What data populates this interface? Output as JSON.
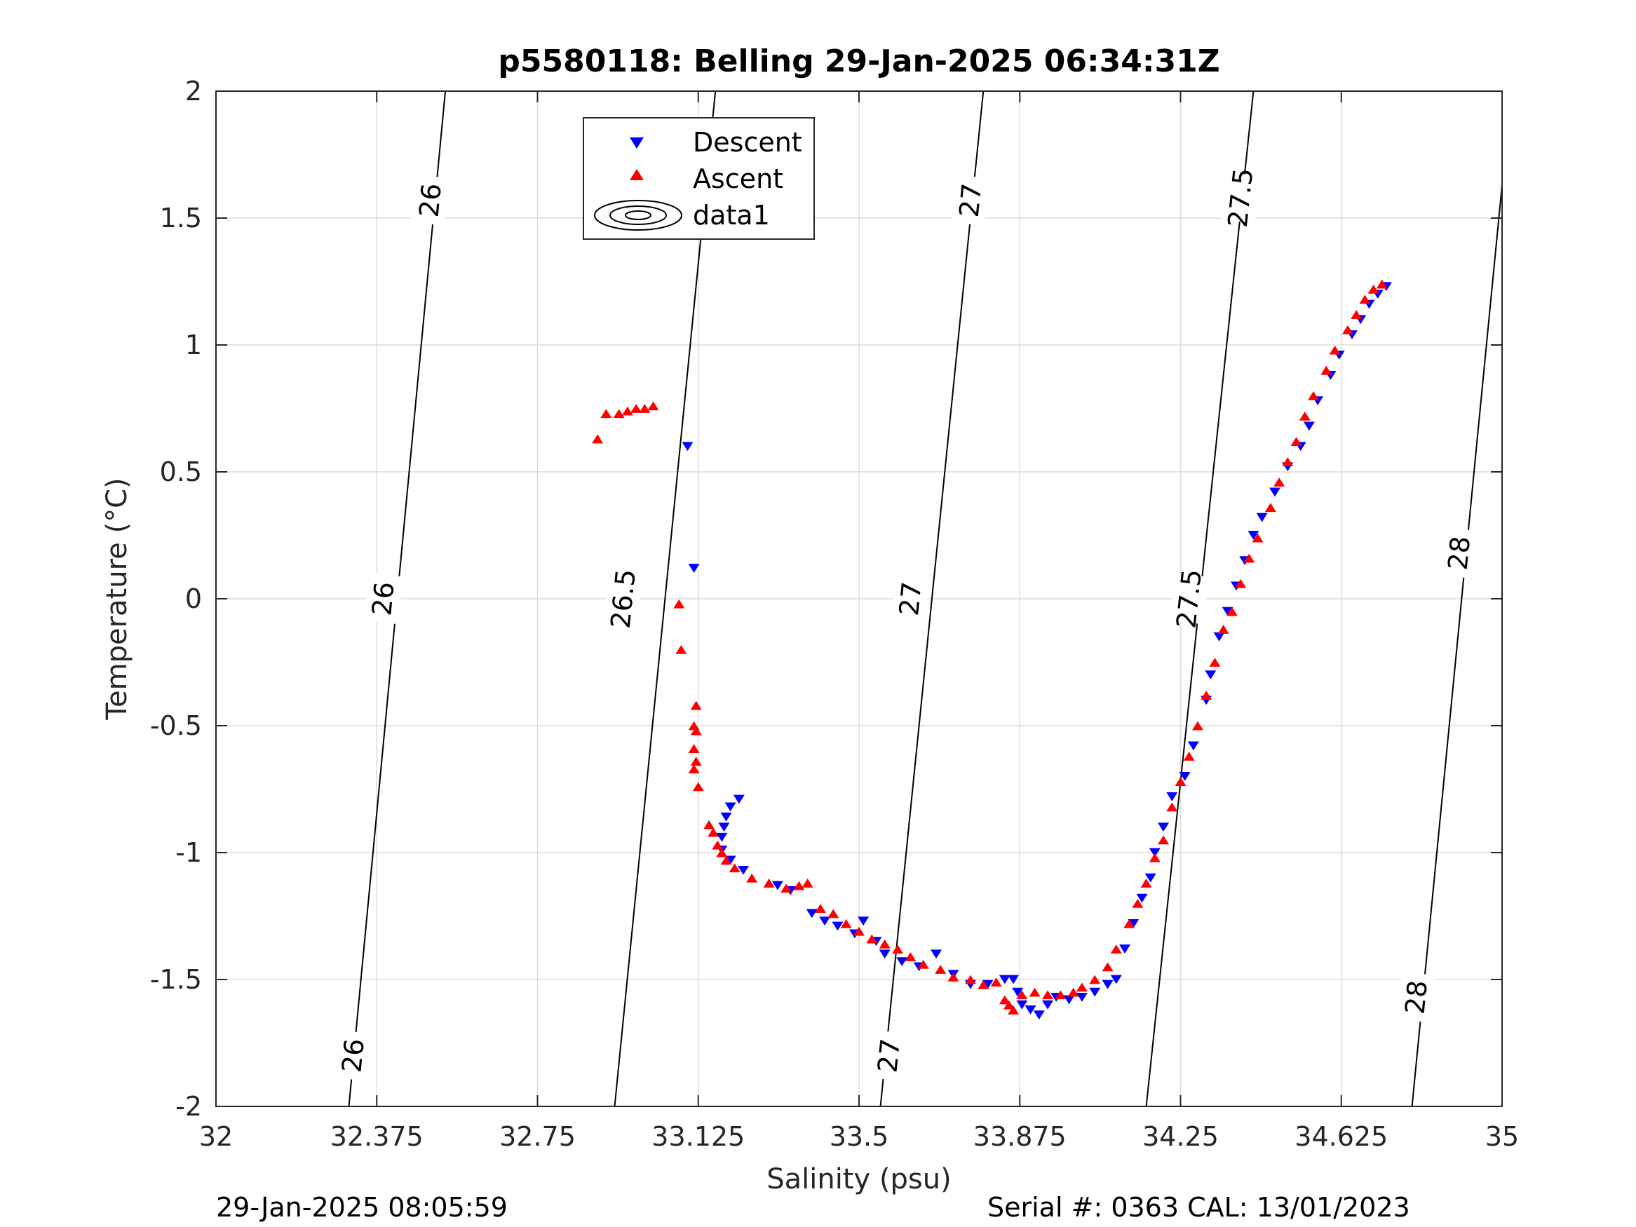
{
  "chart_data": {
    "type": "scatter",
    "title": "p5580118: Belling 29-Jan-2025 06:34:31Z",
    "xlabel": "Salinity (psu)",
    "ylabel": "Temperature (°C)",
    "xlim": [
      32,
      35
    ],
    "ylim": [
      -2,
      2
    ],
    "x_ticks": [
      32,
      32.375,
      32.75,
      33.125,
      33.5,
      33.875,
      34.25,
      34.625,
      35
    ],
    "x_tick_labels": [
      "32",
      "32.375",
      "32.75",
      "33.125",
      "33.5",
      "33.875",
      "34.25",
      "34.625",
      "35"
    ],
    "y_ticks": [
      -2,
      -1.5,
      -1,
      -0.5,
      0,
      0.5,
      1,
      1.5,
      2
    ],
    "y_tick_labels": [
      "-2",
      "-1.5",
      "-1",
      "-0.5",
      "0",
      "0.5",
      "1",
      "1.5",
      "2"
    ],
    "grid": true,
    "legend_position": "top-center",
    "legend": [
      "Descent",
      "Ascent",
      "data1"
    ],
    "colors": {
      "descent": "#0000ff",
      "ascent": "#ff0000",
      "contour": "#000000",
      "grid": "#dcdcdc"
    },
    "contours": [
      {
        "level": "26",
        "line": [
          [
            32.31,
            -2
          ],
          [
            32.535,
            2
          ]
        ],
        "labels": [
          [
            32.32,
            -1.8
          ],
          [
            32.39,
            0
          ],
          [
            32.5,
            1.57
          ]
        ]
      },
      {
        "level": "26.5",
        "line": [
          [
            32.93,
            -2
          ],
          [
            33.165,
            2
          ]
        ],
        "labels": [
          [
            32.95,
            0
          ],
          [
            33.14,
            1.6
          ]
        ]
      },
      {
        "level": "27",
        "line": [
          [
            33.55,
            -2
          ],
          [
            33.79,
            2
          ]
        ],
        "labels": [
          [
            33.57,
            -1.8
          ],
          [
            33.62,
            0
          ],
          [
            33.76,
            1.57
          ]
        ]
      },
      {
        "level": "27.5",
        "line": [
          [
            34.17,
            -2
          ],
          [
            34.42,
            2
          ]
        ],
        "labels": [
          [
            34.27,
            0
          ],
          [
            34.39,
            1.58
          ]
        ]
      },
      {
        "level": "28",
        "line": [
          [
            34.79,
            -2
          ],
          [
            35,
            1.63
          ]
        ],
        "labels": [
          [
            34.8,
            -1.57
          ],
          [
            34.9,
            0.18
          ]
        ]
      }
    ],
    "series": [
      {
        "name": "Descent",
        "marker": "triangle-down",
        "points": [
          [
            33.1,
            0.6
          ],
          [
            33.115,
            0.12
          ],
          [
            33.22,
            -0.79
          ],
          [
            33.2,
            -0.82
          ],
          [
            33.19,
            -0.86
          ],
          [
            33.185,
            -0.9
          ],
          [
            33.18,
            -0.94
          ],
          [
            33.18,
            -0.99
          ],
          [
            33.2,
            -1.03
          ],
          [
            33.23,
            -1.07
          ],
          [
            33.31,
            -1.13
          ],
          [
            33.34,
            -1.15
          ],
          [
            33.39,
            -1.24
          ],
          [
            33.42,
            -1.27
          ],
          [
            33.45,
            -1.29
          ],
          [
            33.49,
            -1.32
          ],
          [
            33.51,
            -1.27
          ],
          [
            33.54,
            -1.35
          ],
          [
            33.56,
            -1.4
          ],
          [
            33.6,
            -1.43
          ],
          [
            33.64,
            -1.45
          ],
          [
            33.68,
            -1.4
          ],
          [
            33.72,
            -1.48
          ],
          [
            33.76,
            -1.52
          ],
          [
            33.8,
            -1.52
          ],
          [
            33.84,
            -1.5
          ],
          [
            33.86,
            -1.5
          ],
          [
            33.87,
            -1.55
          ],
          [
            33.88,
            -1.6
          ],
          [
            33.9,
            -1.62
          ],
          [
            33.92,
            -1.64
          ],
          [
            33.94,
            -1.6
          ],
          [
            33.96,
            -1.57
          ],
          [
            33.99,
            -1.58
          ],
          [
            34.02,
            -1.57
          ],
          [
            34.05,
            -1.55
          ],
          [
            34.08,
            -1.52
          ],
          [
            34.1,
            -1.5
          ],
          [
            34.12,
            -1.38
          ],
          [
            34.14,
            -1.28
          ],
          [
            34.16,
            -1.18
          ],
          [
            34.18,
            -1.1
          ],
          [
            34.19,
            -1.0
          ],
          [
            34.21,
            -0.9
          ],
          [
            34.23,
            -0.78
          ],
          [
            34.26,
            -0.7
          ],
          [
            34.28,
            -0.58
          ],
          [
            34.31,
            -0.4
          ],
          [
            34.32,
            -0.3
          ],
          [
            34.34,
            -0.15
          ],
          [
            34.36,
            -0.05
          ],
          [
            34.38,
            0.05
          ],
          [
            34.4,
            0.15
          ],
          [
            34.42,
            0.25
          ],
          [
            34.44,
            0.32
          ],
          [
            34.47,
            0.42
          ],
          [
            34.5,
            0.52
          ],
          [
            34.53,
            0.6
          ],
          [
            34.55,
            0.68
          ],
          [
            34.57,
            0.78
          ],
          [
            34.6,
            0.88
          ],
          [
            34.62,
            0.96
          ],
          [
            34.65,
            1.04
          ],
          [
            34.67,
            1.1
          ],
          [
            34.69,
            1.16
          ],
          [
            34.71,
            1.2
          ],
          [
            34.73,
            1.23
          ]
        ]
      },
      {
        "name": "Ascent",
        "marker": "triangle-up",
        "points": [
          [
            32.89,
            0.63
          ],
          [
            32.91,
            0.73
          ],
          [
            32.94,
            0.73
          ],
          [
            32.96,
            0.74
          ],
          [
            32.98,
            0.75
          ],
          [
            33.0,
            0.75
          ],
          [
            33.02,
            0.76
          ],
          [
            33.08,
            -0.02
          ],
          [
            33.085,
            -0.2
          ],
          [
            33.12,
            -0.42
          ],
          [
            33.115,
            -0.5
          ],
          [
            33.12,
            -0.52
          ],
          [
            33.115,
            -0.59
          ],
          [
            33.12,
            -0.64
          ],
          [
            33.115,
            -0.67
          ],
          [
            33.125,
            -0.74
          ],
          [
            33.15,
            -0.89
          ],
          [
            33.16,
            -0.92
          ],
          [
            33.17,
            -0.97
          ],
          [
            33.18,
            -1.0
          ],
          [
            33.19,
            -1.03
          ],
          [
            33.21,
            -1.06
          ],
          [
            33.25,
            -1.1
          ],
          [
            33.29,
            -1.12
          ],
          [
            33.33,
            -1.14
          ],
          [
            33.36,
            -1.13
          ],
          [
            33.38,
            -1.12
          ],
          [
            33.41,
            -1.22
          ],
          [
            33.44,
            -1.24
          ],
          [
            33.47,
            -1.28
          ],
          [
            33.5,
            -1.31
          ],
          [
            33.53,
            -1.34
          ],
          [
            33.56,
            -1.36
          ],
          [
            33.59,
            -1.38
          ],
          [
            33.62,
            -1.41
          ],
          [
            33.65,
            -1.44
          ],
          [
            33.69,
            -1.46
          ],
          [
            33.72,
            -1.49
          ],
          [
            33.76,
            -1.5
          ],
          [
            33.79,
            -1.52
          ],
          [
            33.82,
            -1.51
          ],
          [
            33.84,
            -1.58
          ],
          [
            33.85,
            -1.6
          ],
          [
            33.86,
            -1.62
          ],
          [
            33.88,
            -1.56
          ],
          [
            33.91,
            -1.55
          ],
          [
            33.94,
            -1.56
          ],
          [
            33.97,
            -1.56
          ],
          [
            34.0,
            -1.55
          ],
          [
            34.02,
            -1.53
          ],
          [
            34.05,
            -1.5
          ],
          [
            34.08,
            -1.45
          ],
          [
            34.1,
            -1.38
          ],
          [
            34.13,
            -1.28
          ],
          [
            34.15,
            -1.2
          ],
          [
            34.17,
            -1.12
          ],
          [
            34.19,
            -1.02
          ],
          [
            34.21,
            -0.95
          ],
          [
            34.23,
            -0.82
          ],
          [
            34.25,
            -0.72
          ],
          [
            34.27,
            -0.62
          ],
          [
            34.29,
            -0.5
          ],
          [
            34.31,
            -0.38
          ],
          [
            34.33,
            -0.25
          ],
          [
            34.35,
            -0.12
          ],
          [
            34.37,
            -0.05
          ],
          [
            34.39,
            0.06
          ],
          [
            34.41,
            0.16
          ],
          [
            34.43,
            0.24
          ],
          [
            34.46,
            0.36
          ],
          [
            34.48,
            0.46
          ],
          [
            34.5,
            0.54
          ],
          [
            34.52,
            0.62
          ],
          [
            34.54,
            0.72
          ],
          [
            34.56,
            0.8
          ],
          [
            34.59,
            0.9
          ],
          [
            34.61,
            0.98
          ],
          [
            34.64,
            1.06
          ],
          [
            34.66,
            1.12
          ],
          [
            34.68,
            1.18
          ],
          [
            34.7,
            1.22
          ],
          [
            34.72,
            1.24
          ]
        ]
      }
    ]
  },
  "footer": {
    "timestamp": "29-Jan-2025 08:05:59",
    "serial": "Serial #: 0363  CAL: 13/01/2023"
  }
}
